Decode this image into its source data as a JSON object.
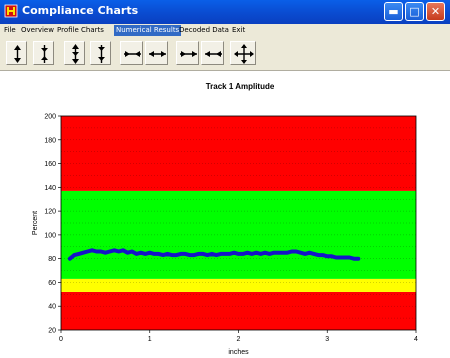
{
  "window": {
    "title": "Compliance Charts"
  },
  "menu": {
    "items": [
      "File",
      "Overview",
      "Profile Charts",
      "Numerical Results",
      "Decoded Data",
      "Exit"
    ],
    "active_index": 3
  },
  "toolbar": {
    "buttons": [
      {
        "icon": "arrows-up-down-icon"
      },
      {
        "icon": "arrows-contract-vertical-icon"
      },
      {
        "icon": "arrows-expand-vertical-icon"
      },
      {
        "icon": "arrows-shift-vertical-icon"
      },
      {
        "icon": "arrows-contract-horizontal-icon"
      },
      {
        "icon": "arrows-expand-horizontal-icon"
      },
      {
        "icon": "arrows-shift-right-icon"
      },
      {
        "icon": "arrows-shift-left-icon"
      },
      {
        "icon": "pan-4-way-icon"
      }
    ]
  },
  "chart_data": {
    "type": "line",
    "title": "Track 1 Amplitude",
    "xlabel": "inches",
    "ylabel": "Percent",
    "xlim": [
      0,
      4
    ],
    "ylim": [
      20,
      200
    ],
    "x_ticks": [
      0,
      1,
      2,
      3,
      4
    ],
    "y_ticks": [
      20,
      40,
      60,
      80,
      100,
      120,
      140,
      160,
      180,
      200
    ],
    "grid": true,
    "bands": [
      {
        "from": 20,
        "to": 52,
        "color": "#ff0000"
      },
      {
        "from": 52,
        "to": 63,
        "color": "#ffff00"
      },
      {
        "from": 63,
        "to": 137,
        "color": "#00ff00"
      },
      {
        "from": 137,
        "to": 200,
        "color": "#ff0000"
      }
    ],
    "series": [
      {
        "color": "#1414c8",
        "points": [
          [
            0.1,
            80
          ],
          [
            0.15,
            83
          ],
          [
            0.2,
            84
          ],
          [
            0.25,
            85
          ],
          [
            0.3,
            86
          ],
          [
            0.35,
            87
          ],
          [
            0.4,
            86
          ],
          [
            0.45,
            86
          ],
          [
            0.5,
            85
          ],
          [
            0.55,
            86
          ],
          [
            0.6,
            87
          ],
          [
            0.65,
            86
          ],
          [
            0.7,
            87
          ],
          [
            0.75,
            85
          ],
          [
            0.8,
            86
          ],
          [
            0.85,
            84
          ],
          [
            0.9,
            85
          ],
          [
            0.95,
            84
          ],
          [
            1.0,
            85
          ],
          [
            1.05,
            84
          ],
          [
            1.1,
            84
          ],
          [
            1.15,
            83
          ],
          [
            1.2,
            84
          ],
          [
            1.25,
            83
          ],
          [
            1.3,
            83
          ],
          [
            1.35,
            84
          ],
          [
            1.4,
            84
          ],
          [
            1.45,
            83
          ],
          [
            1.5,
            83
          ],
          [
            1.55,
            84
          ],
          [
            1.6,
            84
          ],
          [
            1.65,
            83
          ],
          [
            1.7,
            84
          ],
          [
            1.75,
            83
          ],
          [
            1.8,
            84
          ],
          [
            1.85,
            84
          ],
          [
            1.9,
            84
          ],
          [
            1.95,
            85
          ],
          [
            2.0,
            84
          ],
          [
            2.05,
            84
          ],
          [
            2.1,
            85
          ],
          [
            2.15,
            84
          ],
          [
            2.2,
            85
          ],
          [
            2.25,
            84
          ],
          [
            2.3,
            85
          ],
          [
            2.35,
            84
          ],
          [
            2.4,
            85
          ],
          [
            2.45,
            85
          ],
          [
            2.5,
            85
          ],
          [
            2.55,
            85
          ],
          [
            2.6,
            86
          ],
          [
            2.65,
            86
          ],
          [
            2.7,
            85
          ],
          [
            2.75,
            84
          ],
          [
            2.8,
            85
          ],
          [
            2.85,
            84
          ],
          [
            2.9,
            83
          ],
          [
            2.95,
            83
          ],
          [
            3.0,
            82
          ],
          [
            3.05,
            82
          ],
          [
            3.1,
            81
          ],
          [
            3.15,
            81
          ],
          [
            3.2,
            81
          ],
          [
            3.25,
            81
          ],
          [
            3.3,
            80
          ],
          [
            3.35,
            80
          ]
        ]
      }
    ]
  }
}
